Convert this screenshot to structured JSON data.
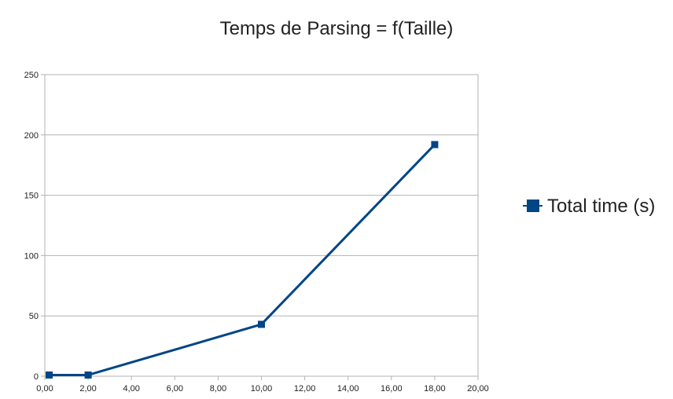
{
  "chart_data": {
    "type": "line",
    "title": "Temps de Parsing = f(Taille)",
    "xlabel": "",
    "ylabel": "",
    "xlim": [
      0,
      20
    ],
    "ylim": [
      0,
      250
    ],
    "x_ticks": [
      "0,00",
      "2,00",
      "4,00",
      "6,00",
      "8,00",
      "10,00",
      "12,00",
      "14,00",
      "16,00",
      "18,00",
      "20,00"
    ],
    "y_ticks": [
      "0",
      "50",
      "100",
      "150",
      "200",
      "250"
    ],
    "grid": "horizontal",
    "legend_position": "right",
    "series": [
      {
        "name": "Total time (s)",
        "color": "#004586",
        "marker": "square",
        "points": [
          {
            "x": 0.2,
            "y": 1
          },
          {
            "x": 2.0,
            "y": 1
          },
          {
            "x": 10.0,
            "y": 43
          },
          {
            "x": 18.0,
            "y": 192
          }
        ]
      }
    ]
  }
}
